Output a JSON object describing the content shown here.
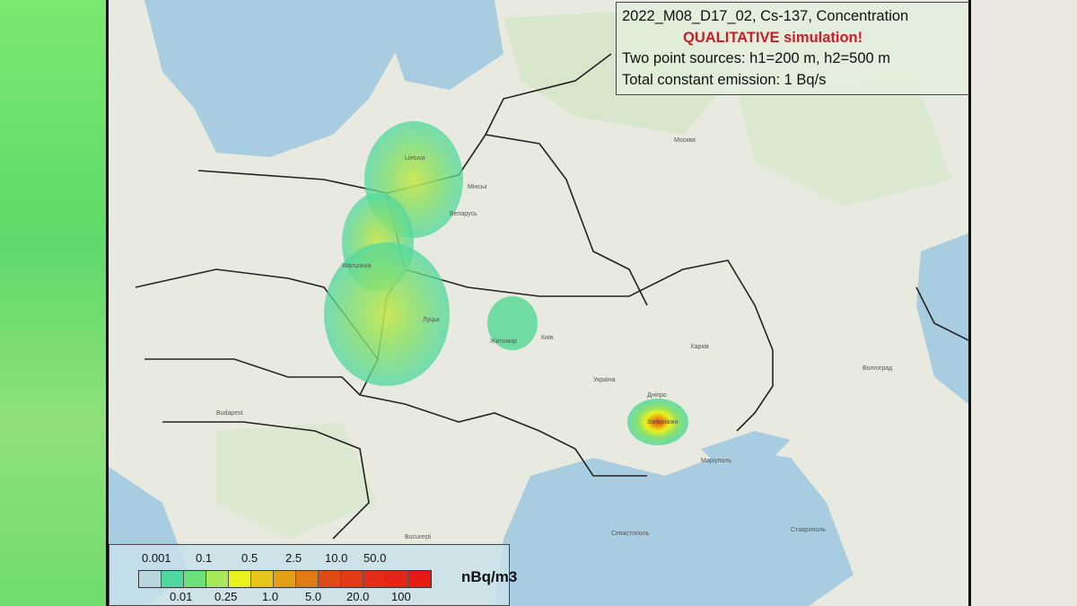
{
  "title_box": {
    "line1": "2022_M08_D17_02,  Cs-137,  Concentration",
    "line2": "QUALITATIVE simulation!",
    "line3": "Two point sources: h1=200 m, h2=500 m",
    "line4": "Total constant emission: 1 Bq/s",
    "warning_color": "#c8202a"
  },
  "legend": {
    "top_ticks": [
      "0.001",
      "0.1",
      "0.5",
      "2.5",
      "10.0",
      "50.0"
    ],
    "bottom_ticks": [
      "0.01",
      "0.25",
      "1.0",
      "5.0",
      "20.0",
      "100"
    ],
    "unit": "nBq/m3",
    "colors": [
      "#b9d6df",
      "#4ed8a0",
      "#6ee07a",
      "#a6e85a",
      "#e8f21e",
      "#e6c41a",
      "#e4a014",
      "#e07a12",
      "#e04a14",
      "#e23a16",
      "#e42c18",
      "#e62418",
      "#e81a18"
    ]
  },
  "map": {
    "cities": [
      "Warszawa",
      "Київ",
      "Москва",
      "Мінськ",
      "Дніпро",
      "Запоріжжя",
      "Харків",
      "Волгоград",
      "Budapest",
      "București",
      "Беларусь",
      "Україна",
      "Lietuva",
      "Ставрополь",
      "Маріуполь",
      "Севастополь",
      "Житомир",
      "Луцьк"
    ]
  }
}
